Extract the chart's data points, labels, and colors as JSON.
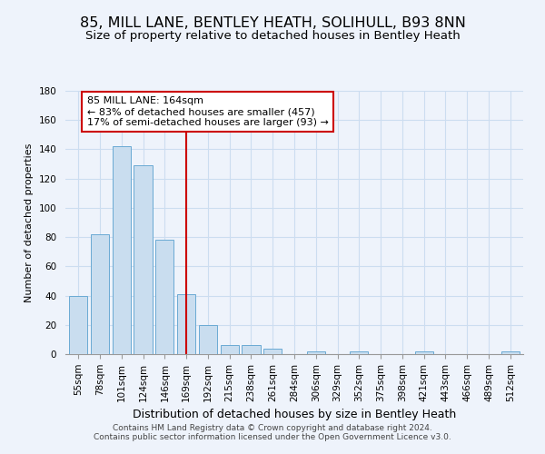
{
  "title": "85, MILL LANE, BENTLEY HEATH, SOLIHULL, B93 8NN",
  "subtitle": "Size of property relative to detached houses in Bentley Heath",
  "xlabel": "Distribution of detached houses by size in Bentley Heath",
  "ylabel": "Number of detached properties",
  "bar_labels": [
    "55sqm",
    "78sqm",
    "101sqm",
    "124sqm",
    "146sqm",
    "169sqm",
    "192sqm",
    "215sqm",
    "238sqm",
    "261sqm",
    "284sqm",
    "306sqm",
    "329sqm",
    "352sqm",
    "375sqm",
    "398sqm",
    "421sqm",
    "443sqm",
    "466sqm",
    "489sqm",
    "512sqm"
  ],
  "bar_values": [
    40,
    82,
    142,
    129,
    78,
    41,
    20,
    6,
    6,
    4,
    0,
    2,
    0,
    2,
    0,
    0,
    2,
    0,
    0,
    0,
    2
  ],
  "bar_color": "#c9ddef",
  "bar_edge_color": "#6aaad4",
  "grid_color": "#ccddf0",
  "vline_x_index": 5,
  "vline_color": "#cc0000",
  "annotation_text": "85 MILL LANE: 164sqm\n← 83% of detached houses are smaller (457)\n17% of semi-detached houses are larger (93) →",
  "annotation_box_color": "#cc0000",
  "ylim": [
    0,
    180
  ],
  "yticks": [
    0,
    20,
    40,
    60,
    80,
    100,
    120,
    140,
    160,
    180
  ],
  "footnote1": "Contains HM Land Registry data © Crown copyright and database right 2024.",
  "footnote2": "Contains public sector information licensed under the Open Government Licence v3.0.",
  "background_color": "#eef3fb",
  "title_fontsize": 11.5,
  "subtitle_fontsize": 9.5,
  "ylabel_fontsize": 8,
  "xlabel_fontsize": 9,
  "tick_fontsize": 7.5,
  "annot_fontsize": 8
}
